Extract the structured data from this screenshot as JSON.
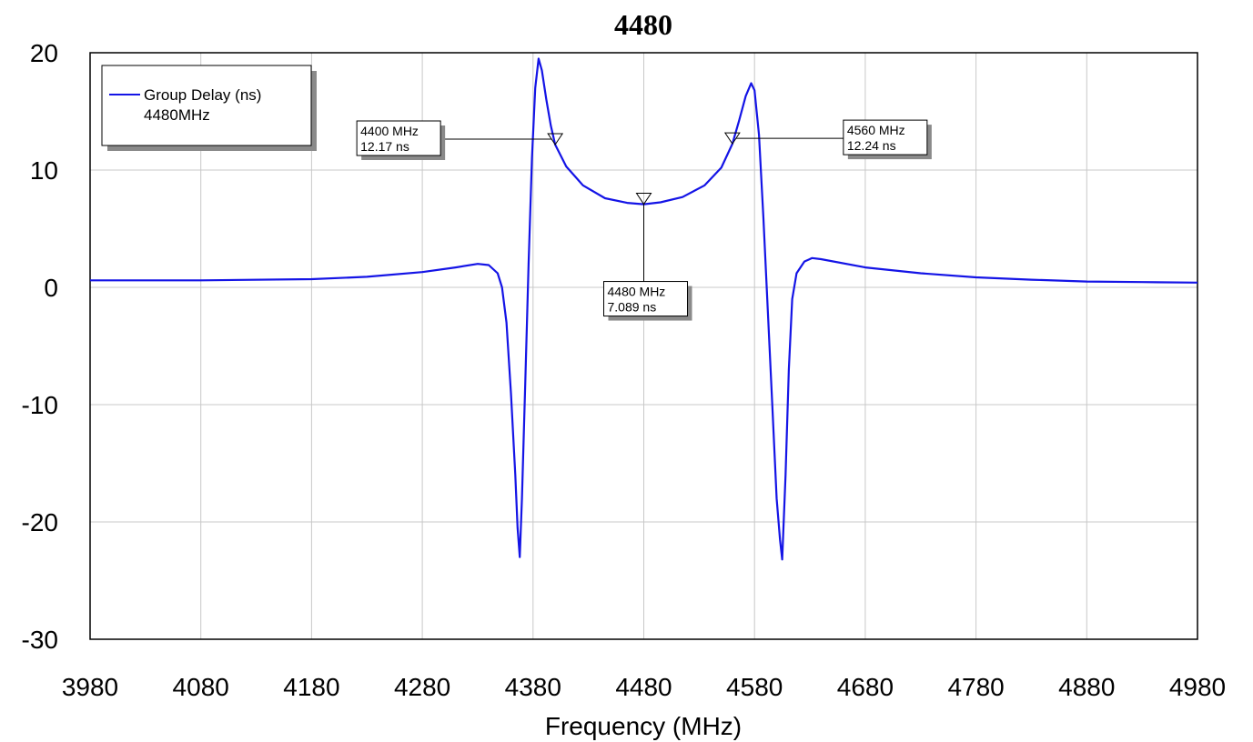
{
  "chart_data": {
    "type": "line",
    "title": "4480",
    "xlabel": "Frequency (MHz)",
    "ylabel": "",
    "xlim": [
      3980,
      4980
    ],
    "ylim": [
      -30,
      20
    ],
    "x_ticks": [
      "3980",
      "4080",
      "4180",
      "4280",
      "4380",
      "4480",
      "4580",
      "4680",
      "4780",
      "4880",
      "4980"
    ],
    "y_ticks": [
      "20",
      "10",
      "0",
      "-10",
      "-20",
      "-30"
    ],
    "grid": true,
    "legend": {
      "placement": "top-left",
      "entries": [
        {
          "label": "Group Delay (ns)",
          "sublabel": "4480MHz",
          "color": "#1414e6"
        }
      ]
    },
    "series": [
      {
        "name": "Group Delay (ns)",
        "color": "#1414e6",
        "points": [
          [
            3980,
            0.6
          ],
          [
            4080,
            0.6
          ],
          [
            4180,
            0.7
          ],
          [
            4230,
            0.9
          ],
          [
            4280,
            1.3
          ],
          [
            4310,
            1.7
          ],
          [
            4330,
            2.0
          ],
          [
            4340,
            1.9
          ],
          [
            4348,
            1.2
          ],
          [
            4352,
            0.0
          ],
          [
            4356,
            -3.0
          ],
          [
            4360,
            -9.0
          ],
          [
            4364,
            -16.0
          ],
          [
            4366,
            -20.5
          ],
          [
            4368,
            -23.0
          ],
          [
            4370,
            -18.0
          ],
          [
            4373,
            -8.0
          ],
          [
            4376,
            2.0
          ],
          [
            4379,
            11.0
          ],
          [
            4382,
            17.0
          ],
          [
            4385,
            19.5
          ],
          [
            4388,
            18.5
          ],
          [
            4392,
            16.0
          ],
          [
            4396,
            13.8
          ],
          [
            4400,
            12.17
          ],
          [
            4410,
            10.3
          ],
          [
            4425,
            8.7
          ],
          [
            4445,
            7.6
          ],
          [
            4465,
            7.2
          ],
          [
            4480,
            7.089
          ],
          [
            4495,
            7.25
          ],
          [
            4515,
            7.7
          ],
          [
            4535,
            8.7
          ],
          [
            4550,
            10.2
          ],
          [
            4560,
            12.24
          ],
          [
            4566,
            14.2
          ],
          [
            4572,
            16.3
          ],
          [
            4577,
            17.4
          ],
          [
            4580,
            16.8
          ],
          [
            4584,
            13.0
          ],
          [
            4588,
            6.0
          ],
          [
            4592,
            -2.0
          ],
          [
            4596,
            -10.0
          ],
          [
            4600,
            -18.0
          ],
          [
            4603,
            -21.5
          ],
          [
            4605,
            -23.2
          ],
          [
            4608,
            -16.0
          ],
          [
            4611,
            -7.0
          ],
          [
            4614,
            -1.0
          ],
          [
            4618,
            1.2
          ],
          [
            4625,
            2.2
          ],
          [
            4632,
            2.5
          ],
          [
            4640,
            2.4
          ],
          [
            4680,
            1.7
          ],
          [
            4730,
            1.2
          ],
          [
            4780,
            0.85
          ],
          [
            4830,
            0.65
          ],
          [
            4880,
            0.5
          ],
          [
            4930,
            0.45
          ],
          [
            4980,
            0.4
          ]
        ]
      }
    ],
    "markers": [
      {
        "x": 4400,
        "y": 12.17,
        "label_freq": "4400 MHz",
        "label_value": "12.17 ns",
        "placement": "upper-left"
      },
      {
        "x": 4480,
        "y": 7.089,
        "label_freq": "4480 MHz",
        "label_value": "7.089 ns",
        "placement": "below"
      },
      {
        "x": 4560,
        "y": 12.24,
        "label_freq": "4560 MHz",
        "label_value": "12.24 ns",
        "placement": "upper-right"
      }
    ]
  }
}
